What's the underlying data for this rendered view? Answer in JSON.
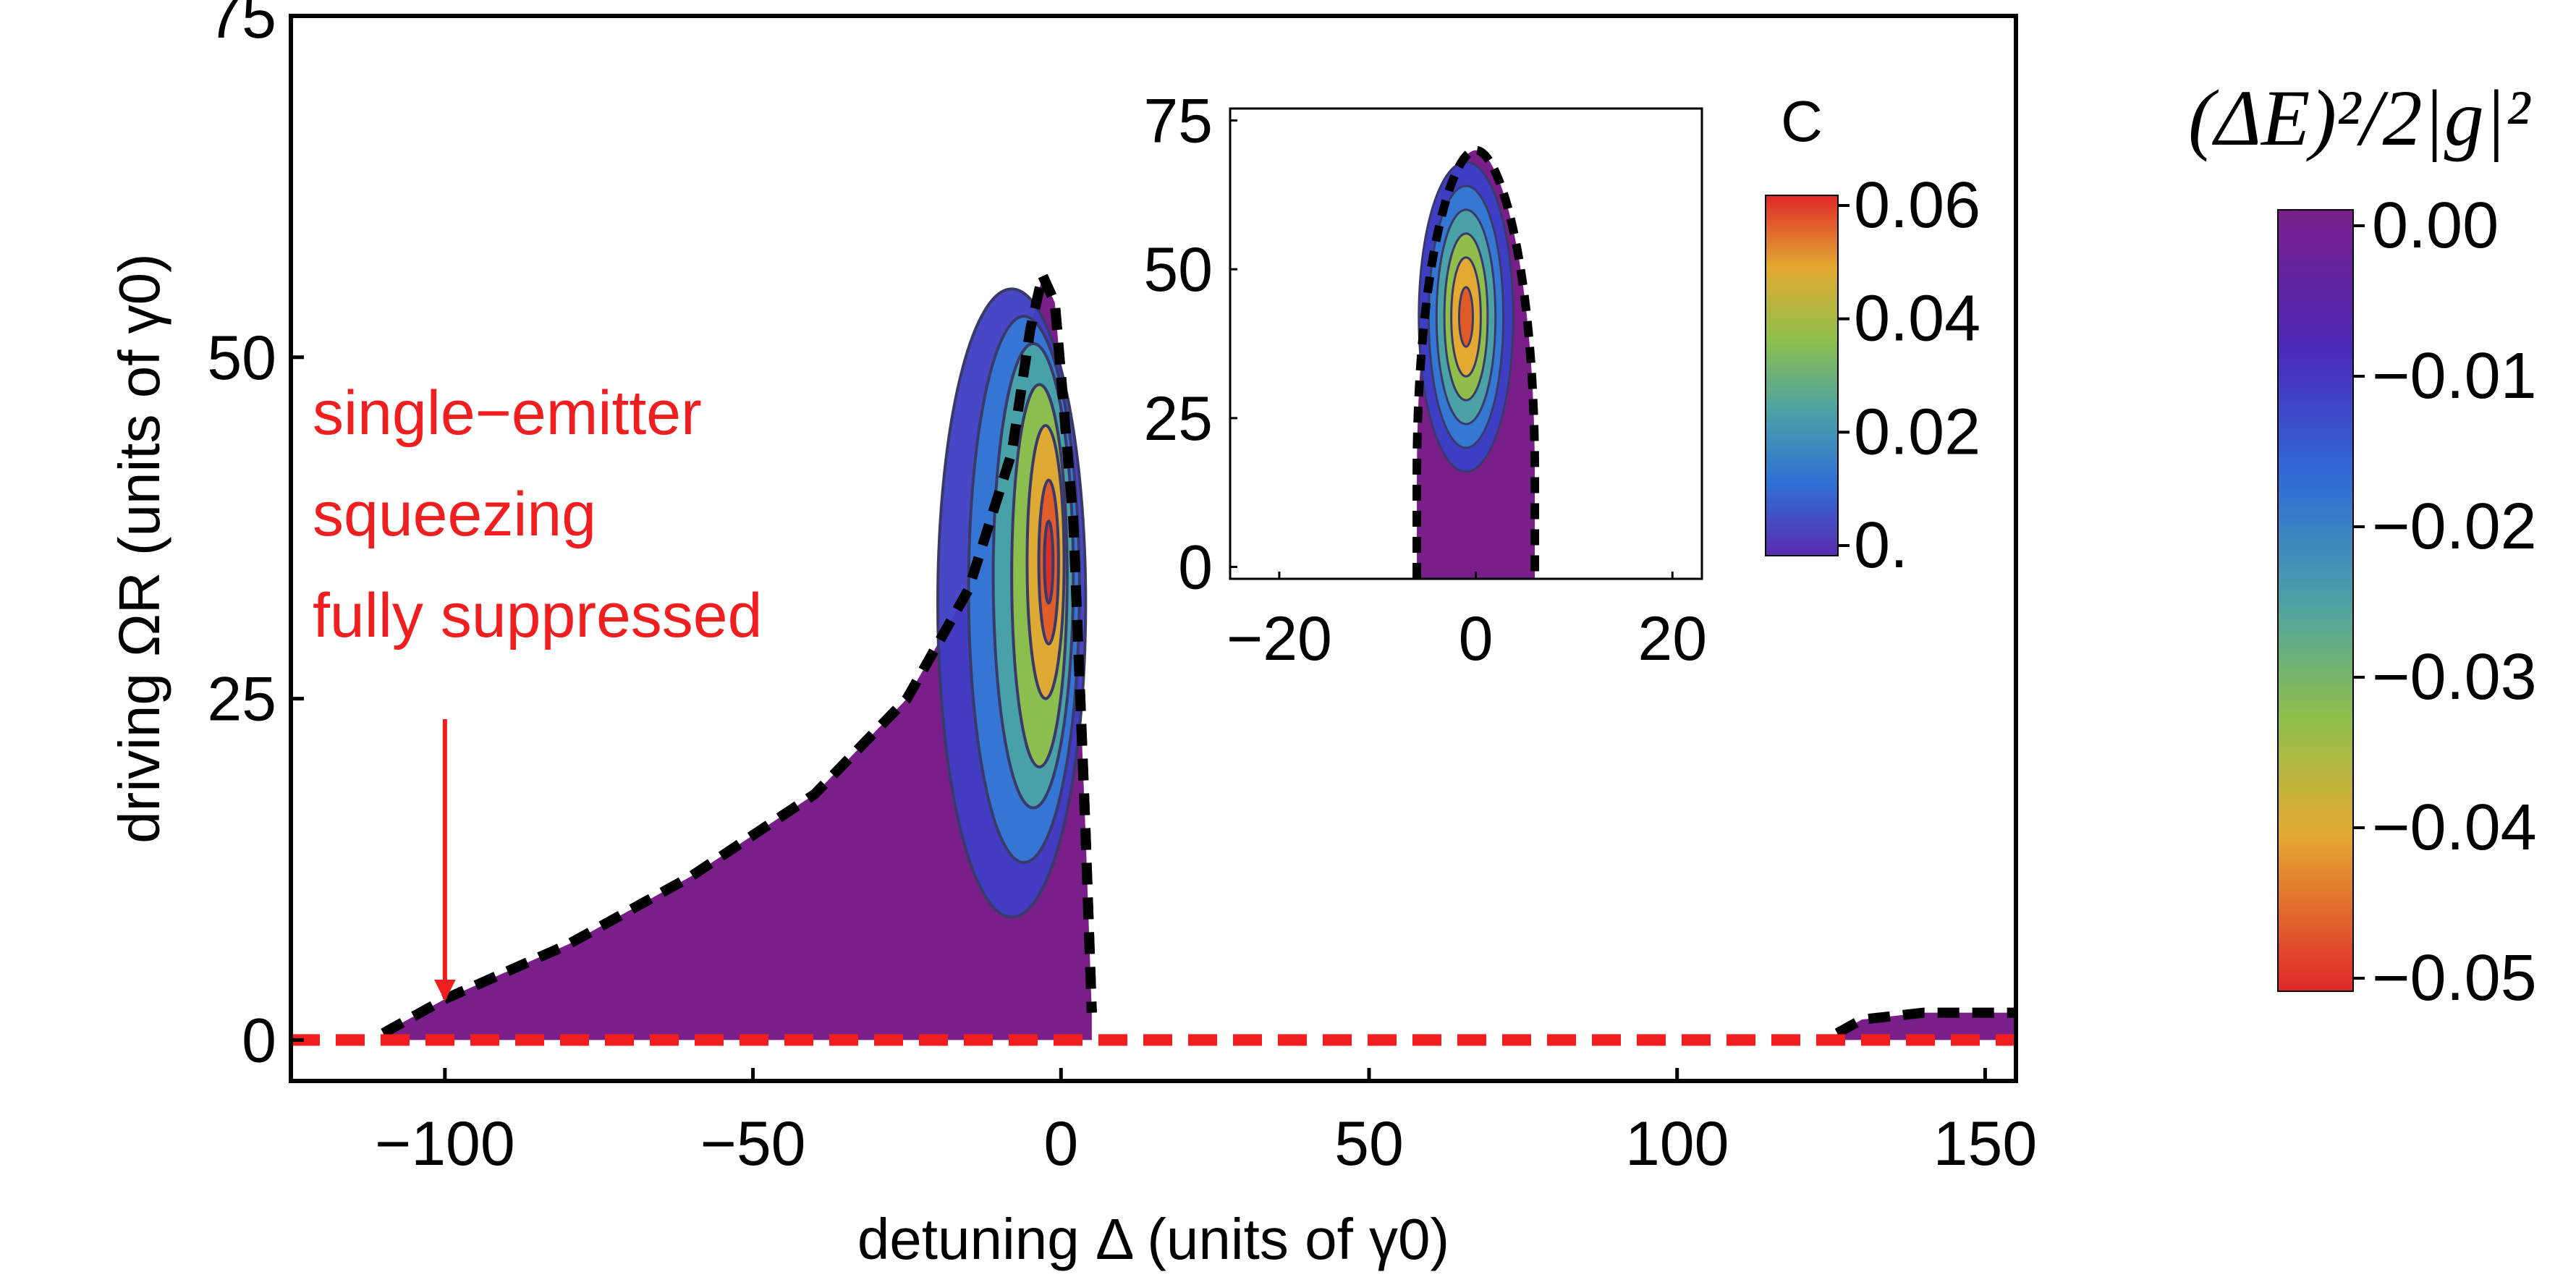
{
  "chart_data": [
    {
      "type": "heatmap",
      "role": "main",
      "xlabel": "detuning Δ (units of γ0)",
      "ylabel": "driving ΩR (units of γ0)",
      "xlim": [
        -125,
        155
      ],
      "ylim": [
        -3,
        75
      ],
      "x_ticks": [
        -100,
        -50,
        0,
        50,
        100,
        150
      ],
      "x_tick_labels": [
        "−100",
        "−50",
        "0",
        "50",
        "100",
        "150"
      ],
      "y_ticks": [
        0,
        25,
        50,
        75
      ],
      "y_tick_labels": [
        "0",
        "25",
        "50",
        "75"
      ],
      "grid": false,
      "colorbar": {
        "label": "(ΔE)²/2|g|²",
        "min": -0.05,
        "max": 0.0,
        "ticks": [
          0.0,
          -0.01,
          -0.02,
          -0.03,
          -0.04,
          -0.05
        ],
        "tick_labels": [
          "0.00",
          "−0.01",
          "−0.02",
          "−0.03",
          "−0.04",
          "−0.05"
        ]
      },
      "regions": [
        {
          "name": "squeezing region",
          "boundary": [
            [
              -110,
              0.5
            ],
            [
              -100,
              3
            ],
            [
              -80,
              7
            ],
            [
              -60,
              12
            ],
            [
              -40,
              18
            ],
            [
              -25,
              25
            ],
            [
              -15,
              33
            ],
            [
              -8,
              43
            ],
            [
              -5,
              52
            ],
            [
              -3,
              56
            ],
            [
              -1,
              54
            ],
            [
              2,
              38
            ],
            [
              4,
              15
            ],
            [
              5,
              2
            ],
            [
              5,
              0
            ],
            [
              -110,
              0
            ]
          ],
          "value_min": -0.05
        },
        {
          "name": "high-detuning region",
          "boundary": [
            [
              126,
              0.5
            ],
            [
              130,
              1.5
            ],
            [
              140,
              2
            ],
            [
              155,
              2
            ],
            [
              155,
              0
            ],
            [
              126,
              0
            ]
          ],
          "value_min": -0.002
        }
      ],
      "annotation": {
        "lines": [
          "single−emitter",
          "squeezing",
          "fully suppressed"
        ],
        "arrow_to": [
          -100,
          0
        ],
        "color": "#f01e1e"
      },
      "reference_line": {
        "y": 0,
        "style": "dashed",
        "color": "#f01e1e"
      }
    },
    {
      "type": "heatmap",
      "role": "inset",
      "xlim": [
        -25,
        23
      ],
      "ylim": [
        -2,
        77
      ],
      "x_ticks": [
        -20,
        0,
        20
      ],
      "x_tick_labels": [
        "−20",
        "0",
        "20"
      ],
      "y_ticks": [
        0,
        25,
        50,
        75
      ],
      "y_tick_labels": [
        "0",
        "25",
        "50",
        "75"
      ],
      "grid": false,
      "colorbar": {
        "label": "C",
        "min": 0.0,
        "max": 0.06,
        "ticks": [
          0.06,
          0.04,
          0.02,
          0.0
        ],
        "tick_labels": [
          "0.06",
          "0.04",
          "0.02",
          "0."
        ]
      },
      "regions": [
        {
          "name": "concurrence region",
          "center": [
            -1,
            42
          ],
          "x_range": [
            -6,
            6
          ],
          "y_range": [
            0,
            70
          ],
          "value_max": 0.045
        }
      ]
    }
  ]
}
